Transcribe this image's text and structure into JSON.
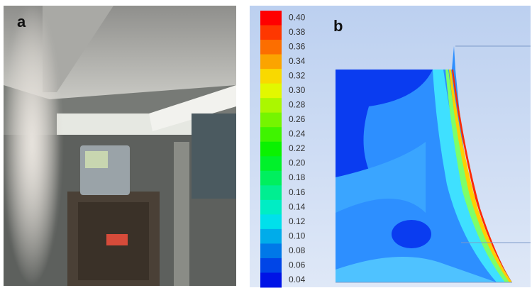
{
  "panels": [
    {
      "label": "a"
    },
    {
      "label": "b",
      "colorbar": {
        "labels": [
          "0.40",
          "0.38",
          "0.36",
          "0.34",
          "0.32",
          "0.30",
          "0.28",
          "0.26",
          "0.24",
          "0.22",
          "0.20",
          "0.18",
          "0.16",
          "0.14",
          "0.12",
          "0.10",
          "0.08",
          "0.06",
          "0.04"
        ]
      }
    }
  ]
}
